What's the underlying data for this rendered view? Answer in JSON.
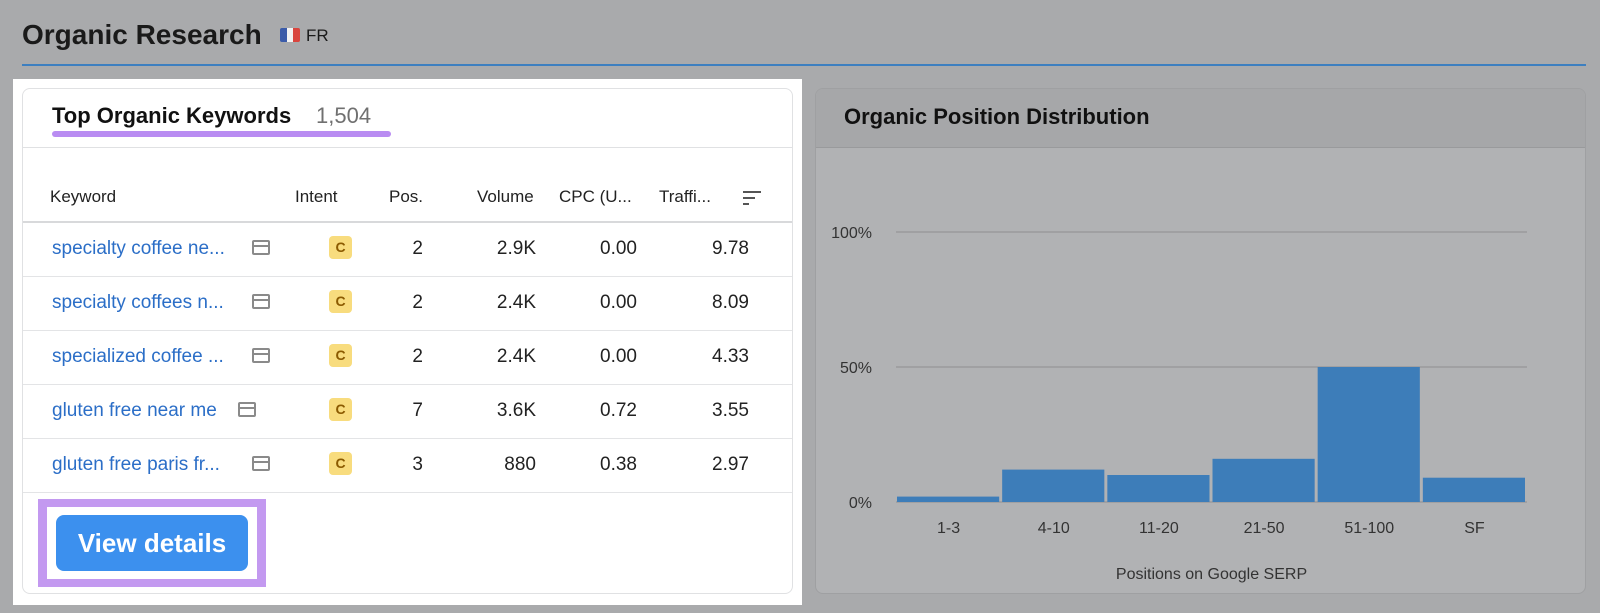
{
  "header": {
    "title": "Organic Research",
    "flag_icon": "france-flag-icon",
    "country": "FR"
  },
  "keywords_card": {
    "title": "Top Organic Keywords",
    "count": "1,504",
    "columns": [
      "Keyword",
      "Intent",
      "Pos.",
      "Volume",
      "CPC (U...",
      "Traffi..."
    ],
    "rows": [
      {
        "keyword": "specialty coffee ne...",
        "intent": "C",
        "pos": "2",
        "volume": "2.9K",
        "cpc": "0.00",
        "traffic": "9.78"
      },
      {
        "keyword": "specialty coffees n...",
        "intent": "C",
        "pos": "2",
        "volume": "2.4K",
        "cpc": "0.00",
        "traffic": "8.09"
      },
      {
        "keyword": "specialized coffee ...",
        "intent": "C",
        "pos": "2",
        "volume": "2.4K",
        "cpc": "0.00",
        "traffic": "4.33"
      },
      {
        "keyword": "gluten free near me",
        "intent": "C",
        "pos": "7",
        "volume": "3.6K",
        "cpc": "0.72",
        "traffic": "3.55"
      },
      {
        "keyword": "gluten free paris fr...",
        "intent": "C",
        "pos": "3",
        "volume": "880",
        "cpc": "0.38",
        "traffic": "2.97"
      }
    ],
    "button_label": "View details"
  },
  "distribution_card": {
    "title": "Organic Position Distribution"
  },
  "chart_data": {
    "type": "bar",
    "categories": [
      "1-3",
      "4-10",
      "11-20",
      "21-50",
      "51-100",
      "SF"
    ],
    "values": [
      2,
      12,
      10,
      16,
      50,
      9
    ],
    "xlabel": "Positions on Google SERP",
    "ylabel": "",
    "yticks": [
      "0%",
      "50%",
      "100%"
    ],
    "ylim": [
      0,
      100
    ],
    "grid": true,
    "bar_color": "#3d7db9"
  }
}
